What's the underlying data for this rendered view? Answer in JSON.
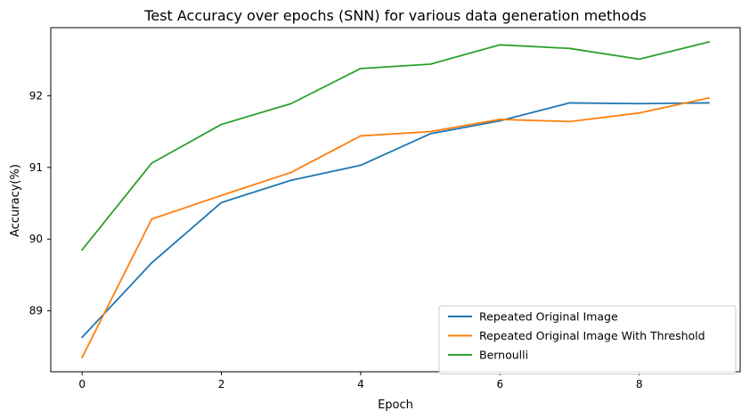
{
  "chart_data": {
    "type": "line",
    "title": "Test Accuracy over epochs (SNN) for various data generation methods",
    "xlabel": "Epoch",
    "ylabel": "Accuracy(%)",
    "x": [
      0,
      1,
      2,
      3,
      4,
      5,
      6,
      7,
      8,
      9
    ],
    "xlim": [
      -0.45,
      9.45
    ],
    "ylim": [
      88.15,
      92.95
    ],
    "xticks": [
      0,
      2,
      4,
      6,
      8
    ],
    "yticks": [
      89,
      90,
      91,
      92
    ],
    "grid": false,
    "legend_position": "lower-right",
    "series": [
      {
        "name": "Repeated Original Image",
        "color": "#1f77b4",
        "values": [
          88.63,
          89.67,
          90.51,
          90.82,
          91.03,
          91.47,
          91.65,
          91.9,
          91.89,
          91.9
        ]
      },
      {
        "name": "Repeated Original Image With Threshold",
        "color": "#ff7f0e",
        "values": [
          88.35,
          90.28,
          90.61,
          90.93,
          91.44,
          91.5,
          91.67,
          91.64,
          91.76,
          91.97
        ]
      },
      {
        "name": "Bernoulli",
        "color": "#2ca02c",
        "values": [
          89.85,
          91.06,
          91.6,
          91.89,
          92.38,
          92.44,
          92.71,
          92.66,
          92.51,
          92.75
        ]
      }
    ]
  }
}
